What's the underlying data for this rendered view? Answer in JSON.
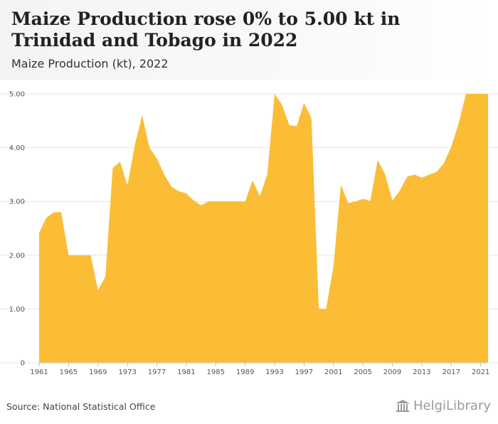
{
  "header": {
    "title": "Maize Production rose 0% to 5.00 kt in Trinidad and Tobago in 2022",
    "subtitle": "Maize Production (kt), 2022"
  },
  "footer": {
    "source": "Source: National Statistical Office",
    "logo_text": "HelgiLibrary"
  },
  "colors": {
    "area_fill": "#fbbd35",
    "gridline": "#e6e6e6",
    "axis_text": "#555555"
  },
  "chart_data": {
    "type": "area",
    "title": "Maize Production rose 0% to 5.00 kt in Trinidad and Tobago in 2022",
    "subtitle": "Maize Production (kt), 2022",
    "xlabel": "",
    "ylabel": "",
    "ylim": [
      0,
      5
    ],
    "yticks": [
      0,
      1,
      2,
      3,
      4,
      5
    ],
    "ytick_labels": [
      "0",
      "1.00",
      "2.00",
      "3.00",
      "4.00",
      "5.00"
    ],
    "xticks": [
      1961,
      1965,
      1969,
      1973,
      1977,
      1981,
      1985,
      1989,
      1993,
      1997,
      2001,
      2005,
      2009,
      2013,
      2017,
      2021
    ],
    "grid": true,
    "legend": "none",
    "series": [
      {
        "x": [
          1961,
          1962,
          1963,
          1964,
          1965,
          1966,
          1967,
          1968,
          1969,
          1970,
          1971,
          1972,
          1973,
          1974,
          1975,
          1976,
          1977,
          1978,
          1979,
          1980,
          1981,
          1982,
          1983,
          1984,
          1985,
          1986,
          1987,
          1988,
          1989,
          1990,
          1991,
          1992,
          1993,
          1994,
          1995,
          1996,
          1997,
          1998,
          1999,
          2000,
          2001,
          2002,
          2003,
          2004,
          2005,
          2006,
          2007,
          2008,
          2009,
          2010,
          2011,
          2012,
          2013,
          2014,
          2015,
          2016,
          2017,
          2018,
          2019,
          2020,
          2021,
          2022
        ],
        "values": [
          2.42,
          2.7,
          2.8,
          2.8,
          2.0,
          2.0,
          2.0,
          2.0,
          1.35,
          1.6,
          3.62,
          3.74,
          3.3,
          4.05,
          4.6,
          4.0,
          3.8,
          3.5,
          3.27,
          3.19,
          3.15,
          3.02,
          2.93,
          3.0,
          3.0,
          3.0,
          3.0,
          3.0,
          3.0,
          3.39,
          3.1,
          3.5,
          5.0,
          4.8,
          4.42,
          4.4,
          4.83,
          4.55,
          1.01,
          1.0,
          1.8,
          3.31,
          2.97,
          3.0,
          3.05,
          3.01,
          3.77,
          3.51,
          3.02,
          3.2,
          3.46,
          3.5,
          3.44,
          3.5,
          3.55,
          3.71,
          4.02,
          4.45,
          5.0,
          5.0,
          5.0,
          5.0
        ]
      }
    ]
  }
}
